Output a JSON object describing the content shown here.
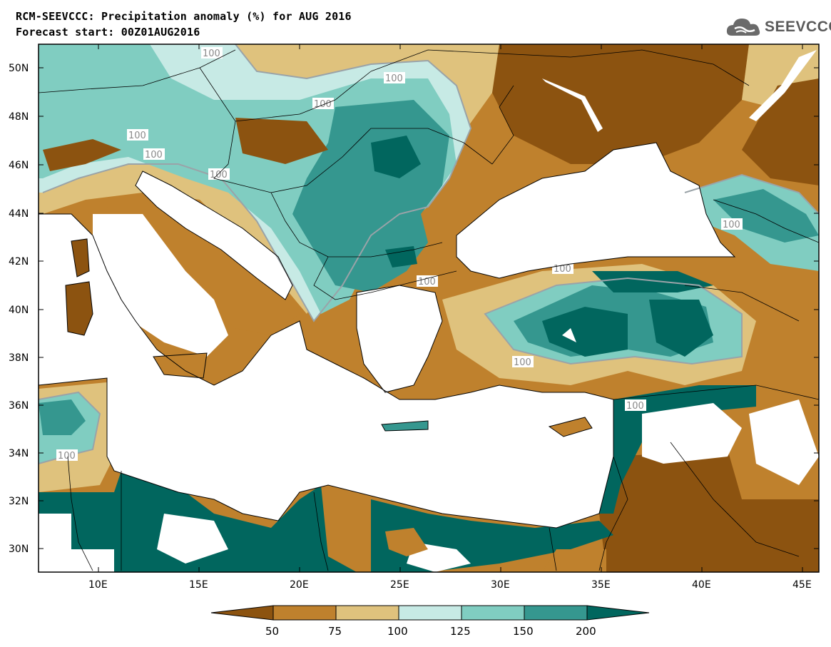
{
  "header": {
    "title_line1": "RCM-SEEVCCC: Precipitation anomaly (%) for AUG 2016",
    "title_line2": "Forecast start: 00Z01AUG2016",
    "logo_text": "SEEVCCC"
  },
  "map": {
    "lat_labels": [
      "50N",
      "48N",
      "46N",
      "44N",
      "42N",
      "40N",
      "38N",
      "36N",
      "34N",
      "32N",
      "30N"
    ],
    "lon_labels": [
      "10E",
      "15E",
      "20E",
      "25E",
      "30E",
      "35E",
      "40E",
      "45E"
    ],
    "contour_label": "100",
    "colors": {
      "very_dry": "#8c5310",
      "dry": "#bf812d",
      "slightly_dry": "#dfc27d",
      "slightly_wet": "#c7eae5",
      "wet": "#80cdc1",
      "very_wet": "#35978f",
      "extreme_wet": "#01665e",
      "sea": "#ffffff"
    }
  },
  "colorbar": {
    "tick_labels": [
      "50",
      "75",
      "100",
      "125",
      "150",
      "200"
    ],
    "colors": [
      "#8c5310",
      "#bf812d",
      "#dfc27d",
      "#c7eae5",
      "#80cdc1",
      "#35978f",
      "#01665e"
    ]
  }
}
